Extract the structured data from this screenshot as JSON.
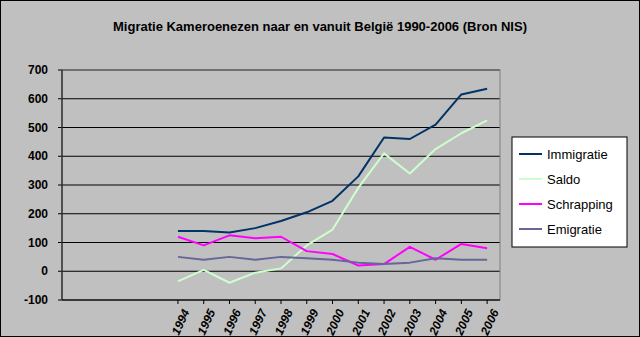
{
  "chart_data": {
    "type": "line",
    "title": "Migratie Kameroenezen naar en vanuit België 1990-2006 (Bron NIS)",
    "categories": [
      null,
      null,
      null,
      null,
      "1994",
      "1995",
      "1996",
      "1997",
      "1998",
      "1999",
      "2000",
      "2001",
      "2002",
      "2003",
      "2004",
      "2005",
      "2006"
    ],
    "series": [
      {
        "name": "Immigratie",
        "color": "#003366",
        "values": [
          null,
          null,
          null,
          null,
          140,
          140,
          135,
          150,
          175,
          205,
          245,
          330,
          465,
          460,
          510,
          615,
          635
        ]
      },
      {
        "name": "Saldo",
        "color": "#ccffcc",
        "values": [
          null,
          null,
          null,
          null,
          -35,
          5,
          -40,
          -5,
          10,
          90,
          145,
          290,
          410,
          340,
          425,
          480,
          525
        ]
      },
      {
        "name": "Schrapping",
        "color": "#ff00ff",
        "values": [
          null,
          null,
          null,
          null,
          120,
          90,
          125,
          115,
          120,
          70,
          60,
          20,
          25,
          85,
          40,
          95,
          80
        ]
      },
      {
        "name": "Emigratie",
        "color": "#666699",
        "values": [
          null,
          null,
          null,
          null,
          50,
          40,
          50,
          40,
          50,
          45,
          40,
          30,
          25,
          30,
          45,
          40,
          40
        ]
      }
    ],
    "ylim": [
      -100,
      700
    ],
    "yticks": [
      -100,
      0,
      100,
      200,
      300,
      400,
      500,
      600,
      700
    ],
    "grid": true,
    "legend": "right"
  }
}
